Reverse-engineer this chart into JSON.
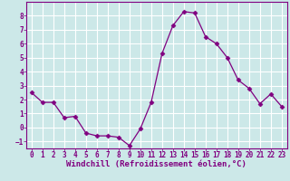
{
  "x": [
    0,
    1,
    2,
    3,
    4,
    5,
    6,
    7,
    8,
    9,
    10,
    11,
    12,
    13,
    14,
    15,
    16,
    17,
    18,
    19,
    20,
    21,
    22,
    23
  ],
  "y": [
    2.5,
    1.8,
    1.8,
    0.7,
    0.8,
    -0.4,
    -0.6,
    -0.6,
    -0.7,
    -1.3,
    -0.1,
    1.8,
    5.3,
    7.3,
    8.3,
    8.2,
    6.5,
    6.0,
    5.0,
    3.4,
    2.8,
    1.7,
    2.4,
    1.5
  ],
  "line_color": "#800080",
  "marker": "D",
  "marker_size": 2.5,
  "bg_color": "#cce8e8",
  "grid_color": "#ffffff",
  "xlabel": "Windchill (Refroidissement éolien,°C)",
  "xlim": [
    -0.5,
    23.5
  ],
  "ylim": [
    -1.5,
    9.0
  ],
  "yticks": [
    -1,
    0,
    1,
    2,
    3,
    4,
    5,
    6,
    7,
    8
  ],
  "xticks": [
    0,
    1,
    2,
    3,
    4,
    5,
    6,
    7,
    8,
    9,
    10,
    11,
    12,
    13,
    14,
    15,
    16,
    17,
    18,
    19,
    20,
    21,
    22,
    23
  ],
  "tick_label_fontsize": 5.5,
  "xlabel_fontsize": 6.5
}
